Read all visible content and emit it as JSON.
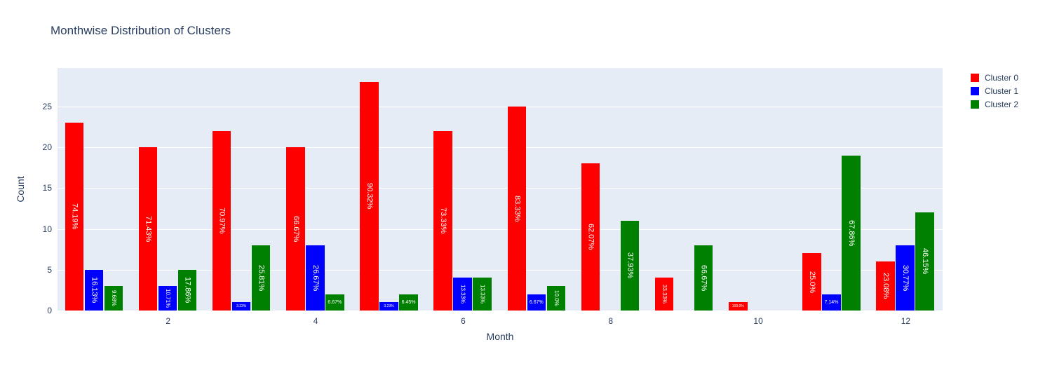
{
  "chart_data": {
    "type": "bar",
    "title": "Monthwise Distribution of Clusters",
    "xlabel": "Month",
    "ylabel": "Count",
    "x": [
      1,
      2,
      3,
      4,
      5,
      6,
      7,
      8,
      9,
      10,
      11,
      12
    ],
    "xticks": [
      2,
      4,
      6,
      8,
      10,
      12
    ],
    "yticks": [
      0,
      5,
      10,
      15,
      20,
      25
    ],
    "ylim": [
      0,
      29.7
    ],
    "grid": true,
    "legend_position": "outside-top-right",
    "plot_bg_color": "#e5ecf6",
    "grid_color": "#ffffff",
    "text_color": "#2a3f5f",
    "bar_label_color": "#ffffff",
    "series": [
      {
        "name": "Cluster 0",
        "color": "#ff0000",
        "values": [
          23,
          20,
          22,
          20,
          28,
          22,
          25,
          18,
          4,
          1,
          7,
          6
        ],
        "labels": [
          "74.19%",
          "71.43%",
          "70.97%",
          "66.67%",
          "90.32%",
          "73.33%",
          "83.33%",
          "62.07%",
          "33.33%",
          "100.0%",
          "25.0%",
          "23.08%"
        ]
      },
      {
        "name": "Cluster 1",
        "color": "#0000ff",
        "values": [
          5,
          3,
          1,
          8,
          1,
          4,
          2,
          null,
          null,
          null,
          2,
          8
        ],
        "labels": [
          "16.13%",
          "10.71%",
          "3.23%",
          "26.67%",
          "3.23%",
          "13.33%",
          "6.67%",
          null,
          null,
          null,
          "7.14%",
          "30.77%"
        ]
      },
      {
        "name": "Cluster 2",
        "color": "#008000",
        "values": [
          3,
          5,
          8,
          2,
          2,
          4,
          3,
          11,
          8,
          null,
          19,
          12
        ],
        "labels": [
          "9.68%",
          "17.86%",
          "25.81%",
          "6.67%",
          "6.45%",
          "13.33%",
          "10.0%",
          "37.93%",
          "66.67%",
          null,
          "67.86%",
          "46.15%"
        ]
      }
    ]
  }
}
